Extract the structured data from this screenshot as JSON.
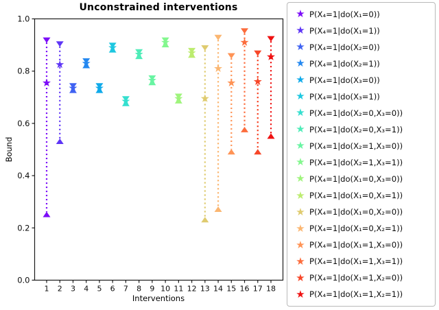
{
  "title": "Unconstrained interventions",
  "axes": {
    "xlabel": "Interventions",
    "ylabel": "Bound",
    "x_ticks": [
      "1",
      "2",
      "3",
      "4",
      "5",
      "6",
      "7",
      "8",
      "9",
      "10",
      "11",
      "12",
      "13",
      "14",
      "15",
      "16",
      "17",
      "18"
    ],
    "y_ticks": [
      "0.0",
      "0.2",
      "0.4",
      "0.6",
      "0.8",
      "1.0"
    ]
  },
  "icons": {
    "legend_marker": "★"
  },
  "chart_data": {
    "type": "scatter",
    "subtype": "interval-bounds-with-point-estimate",
    "title": "Unconstrained interventions",
    "xlabel": "Interventions",
    "ylabel": "Bound",
    "xlim": [
      0.2,
      18.8
    ],
    "ylim": [
      0.0,
      1.0
    ],
    "grid": false,
    "legend_position": "outside-right",
    "marker_upper_bound": "triangle-down",
    "marker_lower_bound": "triangle-up",
    "marker_point_estimate": "star",
    "connector_style": "dotted-vertical-line",
    "x": [
      1,
      2,
      3,
      4,
      5,
      6,
      7,
      8,
      9,
      10,
      11,
      12,
      13,
      14,
      15,
      16,
      17,
      18
    ],
    "series": [
      {
        "x": 1,
        "label": "P(X₄=1|do(X₁=0))",
        "color": "#7C0DF8",
        "upper": 0.92,
        "point": 0.755,
        "lower": 0.25
      },
      {
        "x": 2,
        "label": "P(X₄=1|do(X₁=1))",
        "color": "#5E35F6",
        "upper": 0.905,
        "point": 0.825,
        "lower": 0.53
      },
      {
        "x": 3,
        "label": "P(X₄=1|do(X₂=0))",
        "color": "#3F62F2",
        "upper": 0.745,
        "point": 0.735,
        "lower": 0.725
      },
      {
        "x": 4,
        "label": "P(X₄=1|do(X₂=1))",
        "color": "#2488F0",
        "upper": 0.84,
        "point": 0.83,
        "lower": 0.82
      },
      {
        "x": 5,
        "label": "P(X₄=1|do(X₃=0))",
        "color": "#0FAAEA",
        "upper": 0.745,
        "point": 0.735,
        "lower": 0.725
      },
      {
        "x": 6,
        "label": "P(X₄=1|do(X₃=1))",
        "color": "#1DC7E0",
        "upper": 0.9,
        "point": 0.89,
        "lower": 0.88
      },
      {
        "x": 7,
        "label": "P(X₄=1|do(X₂=0,X₃=0))",
        "color": "#35DFCF",
        "upper": 0.695,
        "point": 0.685,
        "lower": 0.675
      },
      {
        "x": 8,
        "label": "P(X₄=1|do(X₂=0,X₃=1))",
        "color": "#4FECB8",
        "upper": 0.875,
        "point": 0.865,
        "lower": 0.855
      },
      {
        "x": 9,
        "label": "P(X₄=1|do(X₂=1,X₃=0))",
        "color": "#68F4A2",
        "upper": 0.775,
        "point": 0.765,
        "lower": 0.755
      },
      {
        "x": 10,
        "label": "P(X₄=1|do(X₂=1,X₃=1))",
        "color": "#83F78E",
        "upper": 0.92,
        "point": 0.91,
        "lower": 0.9
      },
      {
        "x": 11,
        "label": "P(X₄=1|do(X₁=0,X₃=0))",
        "color": "#9FF47C",
        "upper": 0.705,
        "point": 0.695,
        "lower": 0.685
      },
      {
        "x": 12,
        "label": "P(X₄=1|do(X₁=0,X₃=1))",
        "color": "#BCEC6F",
        "upper": 0.88,
        "point": 0.87,
        "lower": 0.86
      },
      {
        "x": 13,
        "label": "P(X₄=1|do(X₁=0,X₂=0))",
        "color": "#DFCB6F",
        "upper": 0.89,
        "point": 0.695,
        "lower": 0.23
      },
      {
        "x": 14,
        "label": "P(X₄=1|do(X₁=0,X₂=1))",
        "color": "#FBB671",
        "upper": 0.93,
        "point": 0.81,
        "lower": 0.27
      },
      {
        "x": 15,
        "label": "P(X₄=1|do(X₁=1,X₃=0))",
        "color": "#FF9355",
        "upper": 0.86,
        "point": 0.755,
        "lower": 0.49
      },
      {
        "x": 16,
        "label": "P(X₄=1|do(X₁=1,X₃=1))",
        "color": "#FC6C3C",
        "upper": 0.955,
        "point": 0.91,
        "lower": 0.575
      },
      {
        "x": 17,
        "label": "P(X₄=1|do(X₁=1,X₂=0))",
        "color": "#F74628",
        "upper": 0.87,
        "point": 0.76,
        "lower": 0.49
      },
      {
        "x": 18,
        "label": "P(X₄=1|do(X₁=1,X₂=1))",
        "color": "#EF1111",
        "upper": 0.925,
        "point": 0.855,
        "lower": 0.55
      }
    ]
  }
}
